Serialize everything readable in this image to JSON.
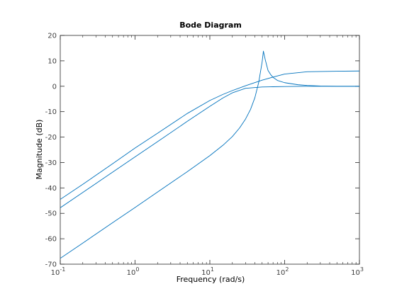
{
  "chart_data": {
    "type": "line",
    "title": "Bode Diagram",
    "xlabel": "Frequency  (rad/s)",
    "ylabel": "Magnitude (dB)",
    "xscale": "log",
    "xlim": [
      0.1,
      1000
    ],
    "ylim": [
      -70,
      20
    ],
    "grid": false,
    "legend": "none",
    "line_color": "#0072BD",
    "x_ticks": [
      {
        "value": 0.1,
        "base": "10",
        "exp": "-1"
      },
      {
        "value": 1,
        "base": "10",
        "exp": "0"
      },
      {
        "value": 10,
        "base": "10",
        "exp": "1"
      },
      {
        "value": 100,
        "base": "10",
        "exp": "2"
      },
      {
        "value": 1000,
        "base": "10",
        "exp": "3"
      }
    ],
    "y_ticks": [
      {
        "value": 20,
        "label": "20"
      },
      {
        "value": 10,
        "label": "10"
      },
      {
        "value": 0,
        "label": "0"
      },
      {
        "value": -10,
        "label": "-10"
      },
      {
        "value": -20,
        "label": "-20"
      },
      {
        "value": -30,
        "label": "-30"
      },
      {
        "value": -40,
        "label": "-40"
      },
      {
        "value": -50,
        "label": "-50"
      },
      {
        "value": -60,
        "label": "-60"
      },
      {
        "value": -70,
        "label": "-70"
      }
    ],
    "series": [
      {
        "x": [
          0.1,
          0.2,
          0.5,
          1,
          2,
          5,
          10,
          15,
          20,
          30,
          50,
          70,
          100,
          200,
          500,
          1000
        ],
        "values": [
          -44.5,
          -38.6,
          -30.5,
          -24.3,
          -18.5,
          -10.7,
          -5.6,
          -3.2,
          -1.7,
          0.2,
          2.4,
          3.6,
          4.8,
          5.7,
          5.9,
          6.0
        ]
      },
      {
        "x": [
          0.1,
          0.2,
          0.5,
          1,
          2,
          5,
          10,
          15,
          20,
          30,
          50,
          70,
          100,
          200,
          500,
          1000
        ],
        "values": [
          -47.8,
          -41.8,
          -33.8,
          -27.8,
          -21.8,
          -13.8,
          -7.9,
          -4.6,
          -2.6,
          -0.8,
          -0.3,
          -0.2,
          -0.1,
          0,
          0,
          0
        ]
      },
      {
        "x": [
          0.1,
          0.2,
          0.5,
          1,
          2,
          5,
          10,
          15,
          20,
          25,
          30,
          35,
          40,
          45,
          50,
          52,
          55,
          60,
          65,
          70,
          80,
          100,
          150,
          200,
          300,
          500,
          1000
        ],
        "values": [
          -67.7,
          -61.7,
          -53.7,
          -47.7,
          -41.6,
          -33.6,
          -27.3,
          -23.2,
          -19.8,
          -16.4,
          -12.9,
          -9.1,
          -4.5,
          1.5,
          9.5,
          13.8,
          10.5,
          6.2,
          4.6,
          3.5,
          2.3,
          1.4,
          0.6,
          0.3,
          0.1,
          0,
          0
        ]
      }
    ]
  }
}
